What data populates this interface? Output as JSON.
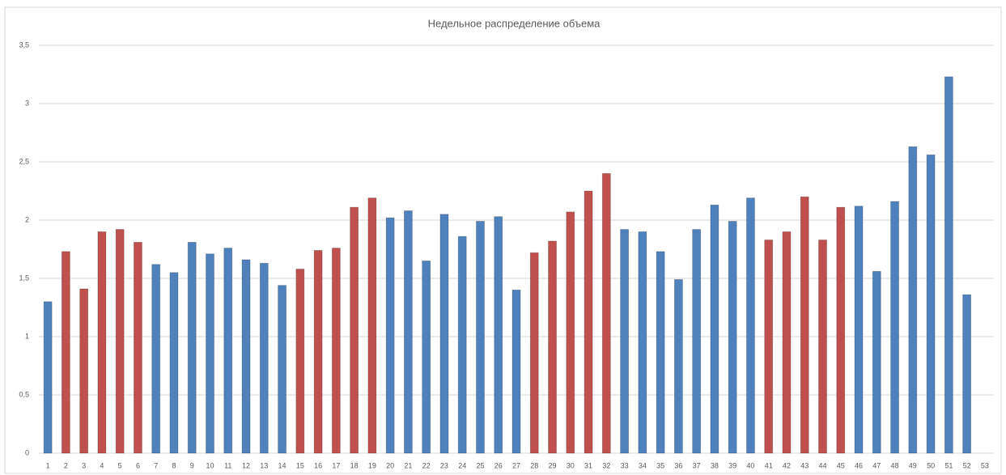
{
  "chart_data": {
    "type": "bar",
    "title": "Недельное распределение объема",
    "categories": [
      "1",
      "2",
      "3",
      "4",
      "5",
      "6",
      "7",
      "8",
      "9",
      "10",
      "11",
      "12",
      "13",
      "14",
      "15",
      "16",
      "17",
      "18",
      "19",
      "20",
      "21",
      "22",
      "23",
      "24",
      "25",
      "26",
      "27",
      "28",
      "29",
      "30",
      "31",
      "32",
      "33",
      "34",
      "35",
      "36",
      "37",
      "38",
      "39",
      "40",
      "41",
      "42",
      "43",
      "44",
      "45",
      "46",
      "47",
      "48",
      "49",
      "50",
      "51",
      "52",
      "53"
    ],
    "values": [
      1.3,
      1.73,
      1.41,
      1.9,
      1.92,
      1.81,
      1.62,
      1.55,
      1.81,
      1.71,
      1.76,
      1.66,
      1.63,
      1.44,
      1.58,
      1.74,
      1.76,
      2.11,
      2.19,
      2.02,
      2.08,
      1.65,
      2.05,
      1.86,
      1.99,
      2.03,
      1.4,
      1.72,
      1.82,
      2.07,
      2.25,
      2.4,
      1.92,
      1.9,
      1.73,
      1.49,
      1.92,
      2.13,
      1.99,
      2.19,
      1.83,
      1.9,
      2.2,
      1.83,
      2.11,
      2.12,
      1.56,
      2.16,
      2.63,
      2.56,
      3.23,
      1.36,
      null
    ],
    "colors": [
      "#4f81bd",
      "#c0504d",
      "#c0504d",
      "#c0504d",
      "#c0504d",
      "#c0504d",
      "#4f81bd",
      "#4f81bd",
      "#4f81bd",
      "#4f81bd",
      "#4f81bd",
      "#4f81bd",
      "#4f81bd",
      "#4f81bd",
      "#c0504d",
      "#c0504d",
      "#c0504d",
      "#c0504d",
      "#c0504d",
      "#4f81bd",
      "#4f81bd",
      "#4f81bd",
      "#4f81bd",
      "#4f81bd",
      "#4f81bd",
      "#4f81bd",
      "#4f81bd",
      "#c0504d",
      "#c0504d",
      "#c0504d",
      "#c0504d",
      "#c0504d",
      "#4f81bd",
      "#4f81bd",
      "#4f81bd",
      "#4f81bd",
      "#4f81bd",
      "#4f81bd",
      "#4f81bd",
      "#4f81bd",
      "#c0504d",
      "#c0504d",
      "#c0504d",
      "#c0504d",
      "#c0504d",
      "#4f81bd",
      "#4f81bd",
      "#4f81bd",
      "#4f81bd",
      "#4f81bd",
      "#4f81bd",
      "#4f81bd",
      null
    ],
    "ylim": [
      0,
      3.5
    ],
    "yticks": [
      0,
      {
        "value": 0.5,
        "label": "0,5"
      },
      1,
      {
        "value": 1.5,
        "label": "1,5"
      },
      2,
      {
        "value": 2.5,
        "label": "2,5"
      },
      3,
      {
        "value": 3.5,
        "label": "3,5"
      }
    ],
    "grid": true
  }
}
